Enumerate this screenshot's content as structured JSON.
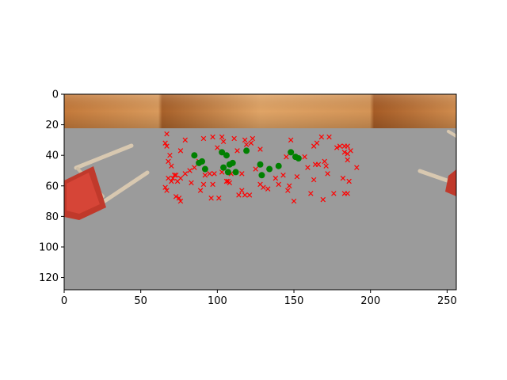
{
  "chart_data": {
    "type": "scatter",
    "title": "",
    "xlabel": "",
    "ylabel": "",
    "xlim": [
      0,
      256
    ],
    "ylim": [
      128,
      0
    ],
    "y_axis_inverted": true,
    "grid": false,
    "legend": "none",
    "background": "image: wooden floor strip at top, grey floor, red chairs at left and right edges",
    "x_ticks": [
      "0",
      "50",
      "100",
      "150",
      "200",
      "250"
    ],
    "y_ticks": [
      "0",
      "20",
      "40",
      "60",
      "80",
      "100",
      "120"
    ],
    "series": [
      {
        "marker": "x",
        "color": "#ff0000",
        "points": [
          [
            67,
            26
          ],
          [
            66,
            32
          ],
          [
            67,
            34
          ],
          [
            68,
            44
          ],
          [
            69,
            40
          ],
          [
            70,
            47
          ],
          [
            72,
            53
          ],
          [
            68,
            55
          ],
          [
            66,
            61
          ],
          [
            67,
            63
          ],
          [
            70,
            57
          ],
          [
            71,
            55
          ],
          [
            73,
            53
          ],
          [
            74,
            57
          ],
          [
            76,
            55
          ],
          [
            75,
            68
          ],
          [
            76,
            70
          ],
          [
            73,
            67
          ],
          [
            76,
            37
          ],
          [
            79,
            30
          ],
          [
            79,
            52
          ],
          [
            82,
            50
          ],
          [
            85,
            48
          ],
          [
            83,
            58
          ],
          [
            89,
            63
          ],
          [
            91,
            59
          ],
          [
            92,
            53
          ],
          [
            88,
            44
          ],
          [
            91,
            29
          ],
          [
            97,
            28
          ],
          [
            95,
            52
          ],
          [
            98,
            52
          ],
          [
            97,
            59
          ],
          [
            96,
            68
          ],
          [
            100,
            35
          ],
          [
            101,
            68
          ],
          [
            103,
            28
          ],
          [
            104,
            31
          ],
          [
            103,
            51
          ],
          [
            106,
            57
          ],
          [
            107,
            57
          ],
          [
            108,
            58
          ],
          [
            109,
            52
          ],
          [
            111,
            29
          ],
          [
            113,
            37
          ],
          [
            114,
            66
          ],
          [
            116,
            63
          ],
          [
            116,
            52
          ],
          [
            118,
            30
          ],
          [
            119,
            33
          ],
          [
            118,
            66
          ],
          [
            121,
            66
          ],
          [
            122,
            32
          ],
          [
            123,
            29
          ],
          [
            125,
            49
          ],
          [
            128,
            36
          ],
          [
            128,
            59
          ],
          [
            130,
            61
          ],
          [
            133,
            62
          ],
          [
            138,
            55
          ],
          [
            140,
            59
          ],
          [
            143,
            53
          ],
          [
            145,
            41
          ],
          [
            146,
            63
          ],
          [
            147,
            60
          ],
          [
            148,
            30
          ],
          [
            150,
            70
          ],
          [
            152,
            54
          ],
          [
            157,
            41
          ],
          [
            159,
            48
          ],
          [
            163,
            34
          ],
          [
            165,
            32
          ],
          [
            164,
            46
          ],
          [
            163,
            56
          ],
          [
            161,
            65
          ],
          [
            166,
            46
          ],
          [
            168,
            28
          ],
          [
            169,
            69
          ],
          [
            170,
            44
          ],
          [
            171,
            47
          ],
          [
            172,
            52
          ],
          [
            173,
            28
          ],
          [
            176,
            65
          ],
          [
            178,
            35
          ],
          [
            180,
            34
          ],
          [
            182,
            55
          ],
          [
            183,
            65
          ],
          [
            183,
            38
          ],
          [
            183,
            34
          ],
          [
            185,
            34
          ],
          [
            185,
            39
          ],
          [
            185,
            43
          ],
          [
            187,
            37
          ],
          [
            186,
            57
          ],
          [
            185,
            65
          ],
          [
            191,
            48
          ]
        ]
      },
      {
        "marker": "o",
        "color": "#008000",
        "points": [
          [
            85,
            40
          ],
          [
            88,
            45
          ],
          [
            90,
            44
          ],
          [
            92,
            49
          ],
          [
            103,
            38
          ],
          [
            106,
            40
          ],
          [
            104,
            48
          ],
          [
            108,
            46
          ],
          [
            110,
            45
          ],
          [
            112,
            51
          ],
          [
            107,
            51
          ],
          [
            119,
            37
          ],
          [
            128,
            46
          ],
          [
            129,
            53
          ],
          [
            134,
            49
          ],
          [
            140,
            47
          ],
          [
            148,
            38
          ],
          [
            151,
            41
          ],
          [
            153,
            42
          ]
        ]
      }
    ]
  }
}
